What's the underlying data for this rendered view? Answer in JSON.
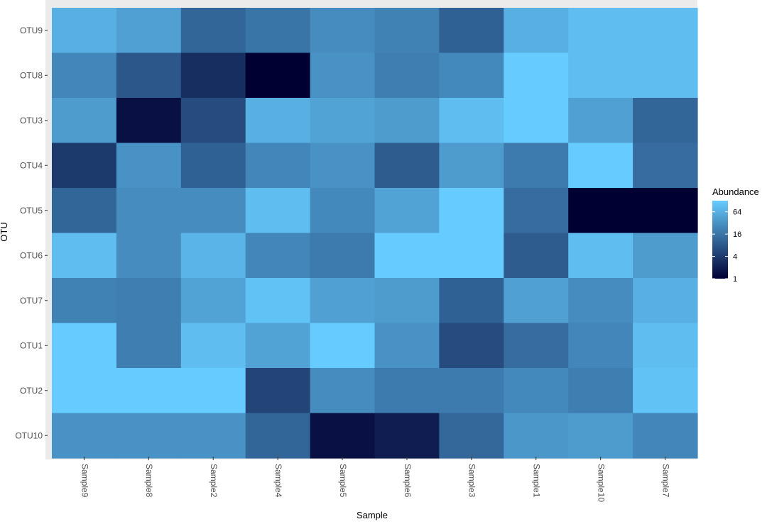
{
  "chart_data": {
    "type": "heatmap",
    "xlabel": "Sample",
    "ylabel": "OTU",
    "x_categories": [
      "Sample9",
      "Sample8",
      "Sample2",
      "Sample4",
      "Sample5",
      "Sample6",
      "Sample3",
      "Sample1",
      "Sample10",
      "Sample7"
    ],
    "y_categories": [
      "OTU9",
      "OTU8",
      "OTU3",
      "OTU4",
      "OTU5",
      "OTU6",
      "OTU7",
      "OTU1",
      "OTU2",
      "OTU10"
    ],
    "values": [
      [
        64,
        45,
        11,
        16,
        28,
        22,
        10,
        64,
        90,
        90
      ],
      [
        24,
        8,
        3,
        1,
        32,
        20,
        26,
        128,
        90,
        90
      ],
      [
        40,
        1.5,
        6,
        64,
        48,
        40,
        90,
        128,
        45,
        11
      ],
      [
        4,
        32,
        10,
        24,
        32,
        9,
        40,
        18,
        128,
        13
      ],
      [
        11,
        28,
        28,
        90,
        26,
        48,
        128,
        13,
        1,
        1
      ],
      [
        90,
        28,
        72,
        24,
        18,
        128,
        128,
        9,
        90,
        40
      ],
      [
        22,
        20,
        48,
        100,
        45,
        40,
        10,
        45,
        28,
        64
      ],
      [
        128,
        20,
        90,
        48,
        128,
        32,
        6,
        13,
        24,
        90
      ],
      [
        128,
        128,
        128,
        5,
        28,
        18,
        18,
        26,
        20,
        100
      ],
      [
        32,
        32,
        32,
        11,
        1.5,
        2,
        12,
        36,
        40,
        24
      ]
    ],
    "legend": {
      "title": "Abundance",
      "scale": "log2",
      "range": [
        1,
        128
      ],
      "breaks": [
        1,
        4,
        16,
        64
      ],
      "break_labels": [
        "1",
        "4",
        "16",
        "64"
      ],
      "low_color": "#000033",
      "high_color": "#66CCFF"
    },
    "panel_background": "#EBEBEB",
    "grid": true
  }
}
